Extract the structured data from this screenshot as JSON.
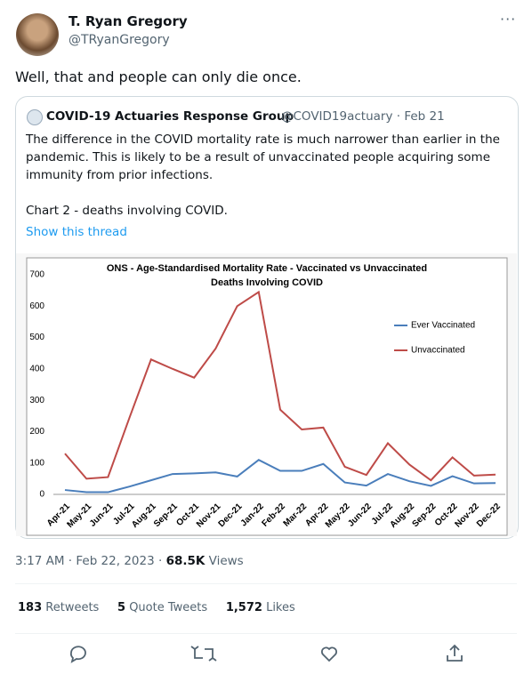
{
  "header": {
    "name": "T. Ryan Gregory",
    "handle": "@TRyanGregory"
  },
  "tweet_text": "Well, that and people can only die once.",
  "quote": {
    "name": "COVID-19 Actuaries Response Group",
    "meta": "@COVID19actuary · Feb 21",
    "paragraphs": [
      "The difference in the COVID mortality rate is much narrower than earlier in the",
      "pandemic. This is likely to be a result of unvaccinated people acquiring some",
      "immunity from prior infections.",
      "Chart 2 - deaths involving COVID."
    ],
    "link": "Show this thread"
  },
  "chart_data": {
    "type": "line",
    "title": [
      "ONS - Age-Standardised Mortality Rate - Vaccinated vs Unvaccinated",
      "Deaths Involving COVID"
    ],
    "categories": [
      "Apr-21",
      "May-21",
      "Jun-21",
      "Jul-21",
      "Aug-21",
      "Sep-21",
      "Oct-21",
      "Nov-21",
      "Dec-21",
      "Jan-22",
      "Feb-22",
      "Mar-22",
      "Apr-22",
      "May-22",
      "Jun-22",
      "Jul-22",
      "Aug-22",
      "Sep-22",
      "Oct-22",
      "Nov-22",
      "Dec-22"
    ],
    "series": [
      {
        "name": "Ever Vaccinated",
        "color": "#4a7ebb",
        "values": [
          14,
          7,
          7,
          25,
          45,
          65,
          67,
          70,
          57,
          110,
          75,
          75,
          97,
          38,
          28,
          65,
          42,
          27,
          58,
          35,
          36
        ]
      },
      {
        "name": "Unvaccinated",
        "color": "#be4b48",
        "values": [
          130,
          50,
          55,
          245,
          430,
          400,
          372,
          465,
          600,
          645,
          270,
          207,
          213,
          88,
          62,
          163,
          95,
          45,
          118,
          60,
          63
        ]
      }
    ],
    "ylim": [
      0,
      700
    ],
    "yticks": [
      0,
      100,
      200,
      300,
      400,
      500,
      600,
      700
    ],
    "grid": false,
    "legend": "right"
  },
  "timestamp": "3:17 AM · Feb 22, 2023 ·",
  "views": "68.5K",
  "views_label": "Views",
  "stats": [
    {
      "count": "183",
      "label": "Retweets"
    },
    {
      "count": "5",
      "label": "Quote Tweets"
    },
    {
      "count": "1,572",
      "label": "Likes"
    }
  ]
}
